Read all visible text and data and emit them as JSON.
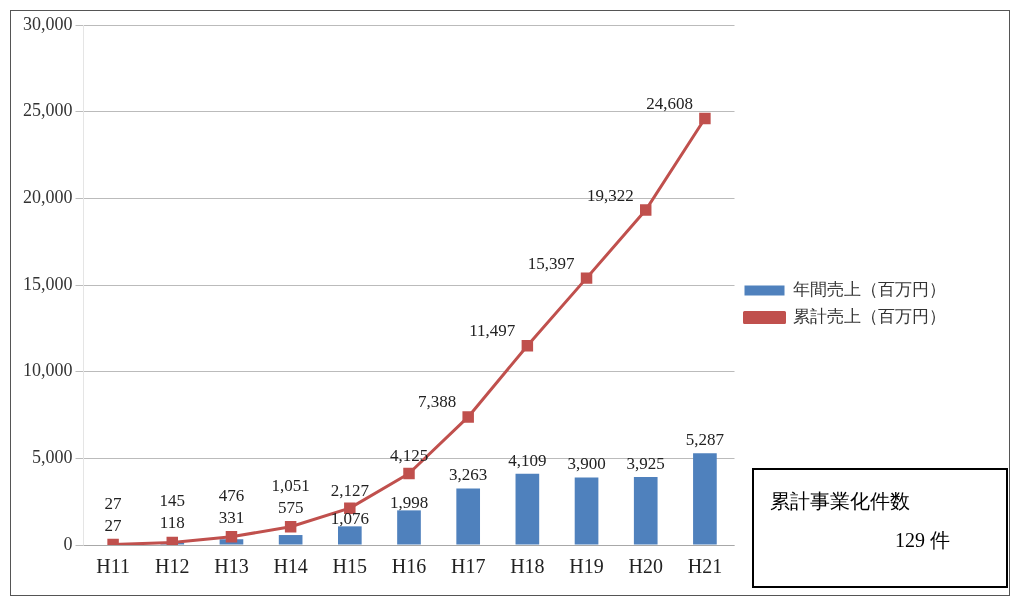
{
  "chart_data": {
    "type": "bar",
    "categories": [
      "H11",
      "H12",
      "H13",
      "H14",
      "H15",
      "H16",
      "H17",
      "H18",
      "H19",
      "H20",
      "H21"
    ],
    "series": [
      {
        "name": "年間売上（百万円）",
        "color": "#4f81bd",
        "values": [
          27,
          118,
          331,
          575,
          1076,
          1998,
          3263,
          4109,
          3900,
          3925,
          5287
        ],
        "value_labels": [
          "27",
          "118",
          "331",
          "575",
          "1,076",
          "1,998",
          "3,263",
          "4,109",
          "3,900",
          "3,925",
          "5,287"
        ]
      },
      {
        "name": "累計売上（百万円）",
        "type": "line",
        "color": "#c0504d",
        "values": [
          27,
          145,
          476,
          1051,
          2127,
          4125,
          7388,
          11497,
          15397,
          19322,
          24608
        ],
        "value_labels": [
          "27",
          "145",
          "476",
          "1,051",
          "2,127",
          "4,125",
          "7,388",
          "11,497",
          "15,397",
          "19,322",
          "24,608"
        ]
      }
    ],
    "ylim": [
      0,
      30000
    ],
    "yticks": [
      {
        "value": 0,
        "label": "0"
      },
      {
        "value": 5000,
        "label": "5,000"
      },
      {
        "value": 10000,
        "label": "10,000"
      },
      {
        "value": 15000,
        "label": "15,000"
      },
      {
        "value": 20000,
        "label": "20,000"
      },
      {
        "value": 25000,
        "label": "25,000"
      },
      {
        "value": 30000,
        "label": "30,000"
      }
    ],
    "grid": "y",
    "legend": "right",
    "marker": "square",
    "line_style": "solid",
    "annotations": [
      "累計事業化件数",
      "129 件"
    ]
  }
}
